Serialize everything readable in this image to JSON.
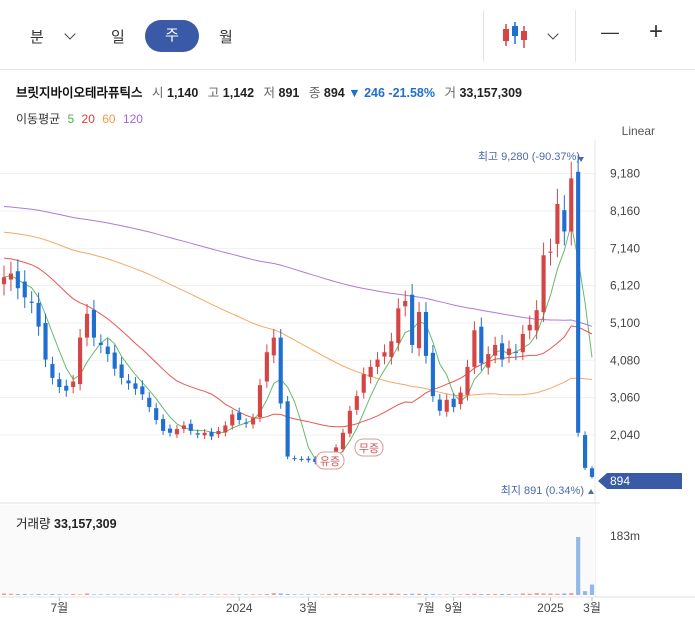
{
  "toolbar": {
    "minute_label": "분",
    "day_label": "일",
    "week_label": "주",
    "month_label": "월",
    "candle_icon": "candlestick-icon",
    "zoom_out_label": "—",
    "zoom_in_label": "+"
  },
  "stock": {
    "name": "브릿지바이오테라퓨틱스",
    "open_label": "시",
    "open": "1,140",
    "high_label": "고",
    "high": "1,142",
    "low_label": "저",
    "low": "891",
    "close_label": "종",
    "close": "894",
    "change": "▼ 246",
    "change_pct": "-21.58%",
    "volume_label": "거",
    "volume": "33,157,309"
  },
  "moving_average": {
    "label": "이동평균",
    "periods": [
      {
        "period": "5",
        "color": "#4caf50"
      },
      {
        "period": "20",
        "color": "#e53935"
      },
      {
        "period": "60",
        "color": "#f29a4a"
      },
      {
        "period": "120",
        "color": "#a064d2"
      }
    ]
  },
  "scale_mode": "Linear",
  "volume_panel": {
    "label": "거래량",
    "value": "33,157,309",
    "axis_label": "183m"
  },
  "chart_data": {
    "type": "candlestick",
    "interval": "weekly",
    "ylim": [
      891,
      9280
    ],
    "y_ticks": [
      2040,
      3060,
      4080,
      5100,
      6120,
      7140,
      8160,
      9180
    ],
    "x_tick_labels": [
      "7월",
      "2024",
      "3월",
      "7월",
      "9월",
      "2025",
      "3월"
    ],
    "high_annotation": "최고 9,280 (-90.37%)",
    "low_annotation": "최지 891 (0.34%)",
    "current_price_label": "894",
    "current_price": 894,
    "event_markers": [
      "유증",
      "무증"
    ],
    "up_color": "#d64545",
    "down_color": "#1f6fd1",
    "closes": [
      6350,
      6450,
      6050,
      5800,
      5650,
      5000,
      4100,
      3600,
      3350,
      3250,
      3500,
      4700,
      5350,
      4700,
      4500,
      4250,
      3850,
      3600,
      3450,
      3300,
      3150,
      2800,
      2450,
      2150,
      2100,
      2200,
      2300,
      2150,
      2050,
      2100,
      2000,
      2150,
      2300,
      2600,
      2450,
      2350,
      2500,
      3400,
      4300,
      4700,
      2900,
      1450,
      1400,
      1380,
      1350,
      1300,
      1420,
      1500,
      1700,
      2100,
      2700,
      3100,
      3700,
      3900,
      4100,
      4300,
      4600,
      5500,
      5700,
      4500,
      5400,
      4200,
      3100,
      2700,
      3000,
      2800,
      3200,
      3900,
      4900,
      4000,
      4250,
      4500,
      4100,
      4400,
      4300,
      4800,
      5050,
      5450,
      6950,
      7050,
      8350,
      7600,
      9050,
      2100,
      1140,
      894
    ],
    "volumes": [
      5,
      4,
      3,
      3,
      2,
      3,
      2,
      3,
      2,
      2,
      3,
      2,
      5,
      2,
      2,
      2,
      2,
      2,
      2,
      2,
      2,
      2,
      2,
      2,
      2,
      2,
      2,
      2,
      2,
      2,
      2,
      2,
      2,
      2,
      2,
      2,
      2,
      2,
      3,
      6,
      5,
      3,
      2,
      2,
      2,
      2,
      2,
      3,
      4,
      3,
      3,
      3,
      4,
      4,
      3,
      4,
      5,
      4,
      3,
      4,
      4,
      3,
      3,
      2,
      2,
      2,
      2,
      3,
      4,
      3,
      3,
      3,
      3,
      3,
      2,
      5,
      4,
      6,
      5,
      5,
      4,
      5,
      6,
      183,
      12,
      33
    ]
  }
}
